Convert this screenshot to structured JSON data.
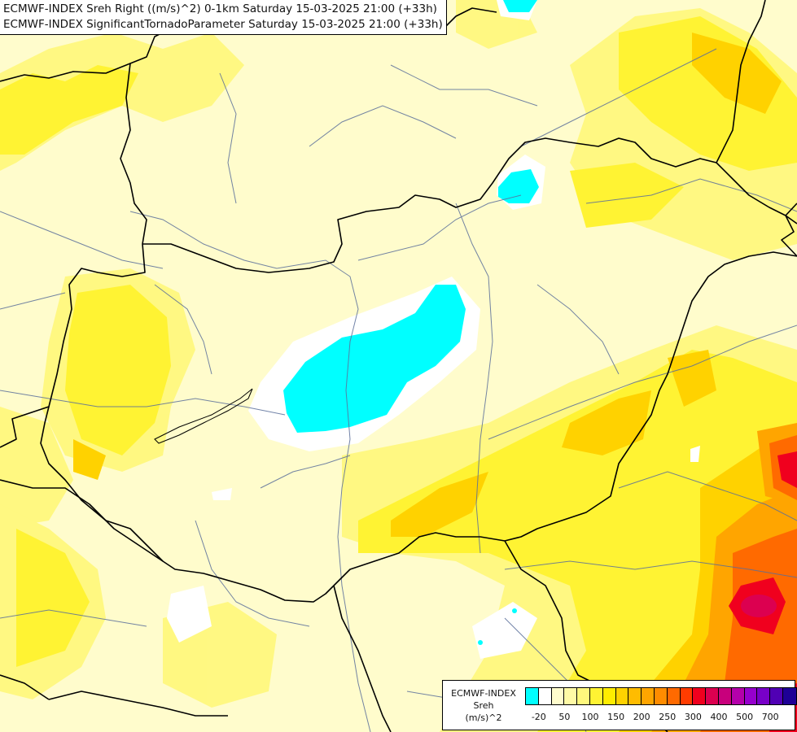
{
  "title": {
    "line1": "ECMWF-INDEX Sreh Right ((m/s)^2) 0-1km Saturday 15-03-2025 21:00 (+33h)",
    "line2": "ECMWF-INDEX SignificantTornadoParameter Saturday 15-03-2025 21:00 (+33h)"
  },
  "legend": {
    "source": "ECMWF-INDEX",
    "variable": "Sreh",
    "unit": "(m/s)^2",
    "colors": [
      "#00ffff",
      "#ffffff",
      "#fffccc",
      "#fffaa6",
      "#fff87d",
      "#fff333",
      "#ffed00",
      "#ffd200",
      "#ffbc00",
      "#ffa500",
      "#ff8c00",
      "#ff6a00",
      "#ff3c00",
      "#f0001e",
      "#dc0050",
      "#c8007c",
      "#b400aa",
      "#9600cd",
      "#7800c8",
      "#5000b4",
      "#1e0096"
    ],
    "ticks": [
      {
        "label": "-20",
        "index": 1
      },
      {
        "label": "50",
        "index": 3
      },
      {
        "label": "100",
        "index": 5
      },
      {
        "label": "150",
        "index": 7
      },
      {
        "label": "200",
        "index": 9
      },
      {
        "label": "250",
        "index": 11
      },
      {
        "label": "300",
        "index": 13
      },
      {
        "label": "400",
        "index": 15
      },
      {
        "label": "500",
        "index": 17
      },
      {
        "label": "700",
        "index": 19
      }
    ]
  },
  "map": {
    "background_color": "#fffccc",
    "border_color": "#000000",
    "river_color": "#5a6e9a",
    "region": "Hungary and surrounding Central Europe"
  }
}
